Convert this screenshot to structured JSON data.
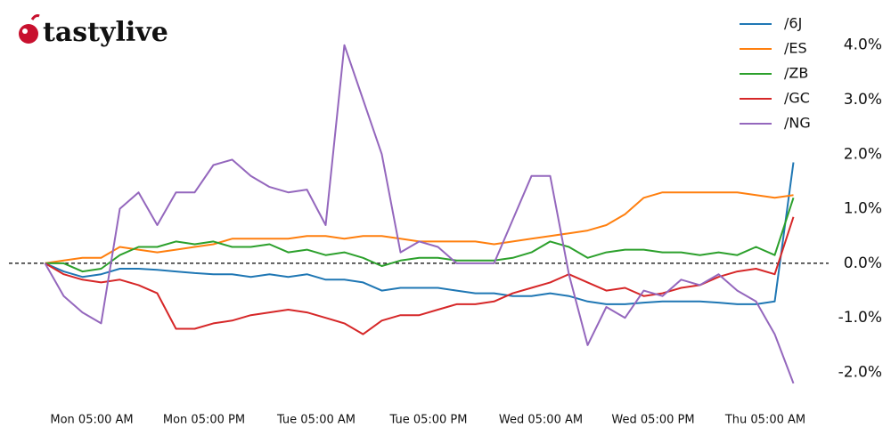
{
  "logo": "tastylive",
  "chart_data": {
    "type": "line",
    "x": [
      0,
      2,
      4,
      6,
      8,
      10,
      12,
      14,
      16,
      18,
      20,
      22,
      24,
      26,
      28,
      30,
      32,
      34,
      36,
      38,
      40,
      42,
      44,
      46,
      48,
      50,
      52,
      54,
      56,
      58,
      60,
      62,
      64,
      66,
      68,
      70,
      72,
      74,
      76,
      78,
      80
    ],
    "xlim": [
      -1,
      82
    ],
    "xticks": [
      {
        "value": 5,
        "label": "Mon 05:00 AM"
      },
      {
        "value": 17,
        "label": "Mon 05:00 PM"
      },
      {
        "value": 29,
        "label": "Tue 05:00 AM"
      },
      {
        "value": 41,
        "label": "Tue 05:00 PM"
      },
      {
        "value": 53,
        "label": "Wed 05:00 AM"
      },
      {
        "value": 65,
        "label": "Wed 05:00 PM"
      },
      {
        "value": 77,
        "label": "Thu 05:00 AM"
      }
    ],
    "ylim": [
      -2.35,
      4.5
    ],
    "yticks": [
      {
        "value": -2,
        "label": "-2.0%"
      },
      {
        "value": -1,
        "label": "-1.0%"
      },
      {
        "value": 0,
        "label": "0.0%"
      },
      {
        "value": 1,
        "label": "1.0%"
      },
      {
        "value": 2,
        "label": "2.0%"
      },
      {
        "value": 3,
        "label": "3.0%"
      },
      {
        "value": 4,
        "label": "4.0%"
      }
    ],
    "reference_line": 0,
    "legend": "upper right",
    "series": [
      {
        "name": "/6J",
        "color": "#1f77b4",
        "values": [
          0,
          -0.15,
          -0.25,
          -0.2,
          -0.1,
          -0.1,
          -0.12,
          -0.15,
          -0.18,
          -0.2,
          -0.2,
          -0.25,
          -0.2,
          -0.25,
          -0.2,
          -0.3,
          -0.3,
          -0.35,
          -0.5,
          -0.45,
          -0.45,
          -0.45,
          -0.5,
          -0.55,
          -0.55,
          -0.6,
          -0.6,
          -0.55,
          -0.6,
          -0.7,
          -0.75,
          -0.75,
          -0.72,
          -0.7,
          -0.7,
          -0.7,
          -0.72,
          -0.75,
          -0.75,
          -0.7,
          1.85
        ]
      },
      {
        "name": "/ES",
        "color": "#ff7f0e",
        "values": [
          0,
          0.05,
          0.1,
          0.1,
          0.3,
          0.25,
          0.2,
          0.25,
          0.3,
          0.35,
          0.45,
          0.45,
          0.45,
          0.45,
          0.5,
          0.5,
          0.45,
          0.5,
          0.5,
          0.45,
          0.4,
          0.4,
          0.4,
          0.4,
          0.35,
          0.4,
          0.45,
          0.5,
          0.55,
          0.6,
          0.7,
          0.9,
          1.2,
          1.3,
          1.3,
          1.3,
          1.3,
          1.3,
          1.25,
          1.2,
          1.25
        ]
      },
      {
        "name": "/ZB",
        "color": "#2ca02c",
        "values": [
          0,
          0,
          -0.15,
          -0.1,
          0.15,
          0.3,
          0.3,
          0.4,
          0.35,
          0.4,
          0.3,
          0.3,
          0.35,
          0.2,
          0.25,
          0.15,
          0.2,
          0.1,
          -0.05,
          0.05,
          0.1,
          0.1,
          0.05,
          0.05,
          0.05,
          0.1,
          0.2,
          0.4,
          0.3,
          0.1,
          0.2,
          0.25,
          0.25,
          0.2,
          0.2,
          0.15,
          0.2,
          0.15,
          0.3,
          0.15,
          1.2
        ]
      },
      {
        "name": "/GC",
        "color": "#d62728",
        "values": [
          0,
          -0.2,
          -0.3,
          -0.35,
          -0.3,
          -0.4,
          -0.55,
          -1.2,
          -1.2,
          -1.1,
          -1.05,
          -0.95,
          -0.9,
          -0.85,
          -0.9,
          -1.0,
          -1.1,
          -1.3,
          -1.05,
          -0.95,
          -0.95,
          -0.85,
          -0.75,
          -0.75,
          -0.7,
          -0.55,
          -0.45,
          -0.35,
          -0.2,
          -0.35,
          -0.5,
          -0.45,
          -0.6,
          -0.55,
          -0.45,
          -0.4,
          -0.25,
          -0.15,
          -0.1,
          -0.2,
          0.85
        ]
      },
      {
        "name": "/NG",
        "color": "#9467bd",
        "values": [
          0,
          -0.6,
          -0.9,
          -1.1,
          1.0,
          1.3,
          0.7,
          1.3,
          1.3,
          1.8,
          1.9,
          1.6,
          1.4,
          1.3,
          1.35,
          0.7,
          4.0,
          3.0,
          2.0,
          0.2,
          0.4,
          0.3,
          0.0,
          0.0,
          0.0,
          0.8,
          1.6,
          1.6,
          -0.2,
          -1.5,
          -0.8,
          -1.0,
          -0.5,
          -0.6,
          -0.3,
          -0.4,
          -0.2,
          -0.5,
          -0.7,
          -1.3,
          -2.2
        ]
      }
    ]
  }
}
